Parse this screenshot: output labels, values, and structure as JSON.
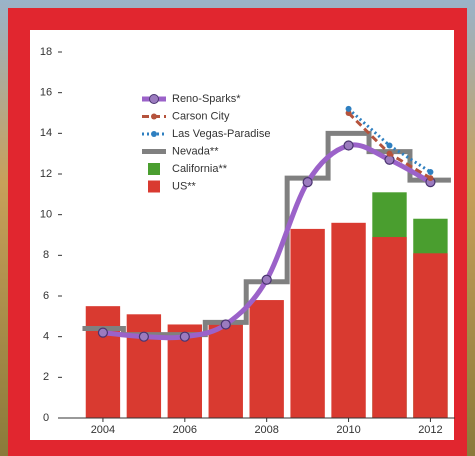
{
  "chart_data": {
    "type": "combo",
    "x": [
      2004,
      2005,
      2006,
      2007,
      2008,
      2009,
      2010,
      2011,
      2012
    ],
    "xlim": [
      2003,
      2012.6
    ],
    "xticks": [
      2004,
      2006,
      2008,
      2010,
      2012
    ],
    "ylim": [
      0,
      18
    ],
    "yticks": [
      0,
      2,
      4,
      6,
      8,
      10,
      12,
      14,
      16,
      18
    ],
    "series": [
      {
        "name": "California**",
        "type": "bar",
        "color": "#4a9e2f",
        "values": [
          null,
          null,
          null,
          null,
          null,
          null,
          null,
          11.1,
          9.8
        ]
      },
      {
        "name": "US**",
        "type": "bar",
        "color": "#d93a30",
        "values": [
          5.5,
          5.1,
          4.6,
          4.6,
          5.8,
          9.3,
          9.6,
          8.9,
          8.1
        ]
      },
      {
        "name": "Nevada**",
        "type": "step",
        "color": "#808080",
        "values": [
          4.4,
          4.1,
          4.1,
          4.7,
          6.7,
          11.8,
          14.0,
          13.1,
          11.7
        ]
      },
      {
        "name": "Reno-Sparks*",
        "type": "smooth",
        "color": "#9b62c9",
        "values": [
          4.2,
          4.0,
          4.0,
          4.6,
          6.8,
          11.6,
          13.4,
          12.7,
          11.6
        ]
      },
      {
        "name": "Carson City",
        "type": "dashed",
        "color": "#b5533c",
        "values": [
          null,
          null,
          null,
          null,
          null,
          null,
          15.0,
          13.0,
          11.8
        ]
      },
      {
        "name": "Las Vegas-Paradise",
        "type": "dotted",
        "color": "#2e7fc0",
        "values": [
          null,
          null,
          null,
          null,
          null,
          null,
          15.2,
          13.4,
          12.1
        ]
      }
    ],
    "legend_order": [
      3,
      4,
      5,
      2,
      0,
      1
    ]
  }
}
